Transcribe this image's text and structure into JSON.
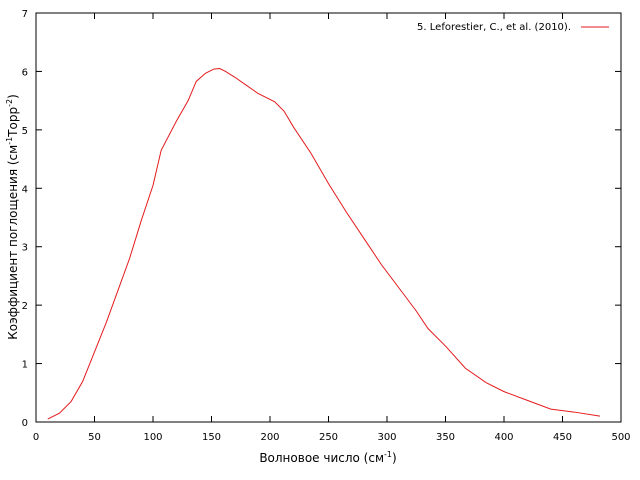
{
  "chart_data": {
    "type": "line",
    "xlabel": [
      "Волновое число (см",
      "-1",
      ")"
    ],
    "ylabel": [
      "Коэффициент поглощения (см",
      "-1",
      "Торр",
      "-2",
      ")"
    ],
    "xlim": [
      0,
      500
    ],
    "ylim": [
      0,
      7
    ],
    "xticks": [
      0,
      50,
      100,
      150,
      200,
      250,
      300,
      350,
      400,
      450,
      500
    ],
    "yticks": [
      0,
      1,
      2,
      3,
      4,
      5,
      6,
      7
    ],
    "legend": "top-right",
    "series": [
      {
        "name": "5. Leforestier, C., et al. (2010).",
        "color": "#e41a1c",
        "x": [
          10,
          20,
          30,
          40,
          50,
          60,
          70,
          80,
          90,
          100,
          107,
          120,
          130,
          137,
          145,
          152,
          157,
          162,
          170,
          180,
          190,
          200,
          204,
          212,
          220,
          235,
          250,
          265,
          280,
          295,
          310,
          325,
          335,
          350,
          367,
          385,
          400,
          420,
          440,
          460,
          482
        ],
        "values": [
          0.05,
          0.15,
          0.35,
          0.7,
          1.2,
          1.7,
          2.25,
          2.8,
          3.45,
          4.05,
          4.65,
          5.15,
          5.5,
          5.83,
          5.97,
          6.04,
          6.05,
          6.0,
          5.9,
          5.76,
          5.62,
          5.52,
          5.48,
          5.32,
          5.05,
          4.6,
          4.08,
          3.6,
          3.15,
          2.7,
          2.3,
          1.9,
          1.6,
          1.3,
          0.92,
          0.67,
          0.52,
          0.37,
          0.22,
          0.17,
          0.1
        ]
      }
    ]
  }
}
